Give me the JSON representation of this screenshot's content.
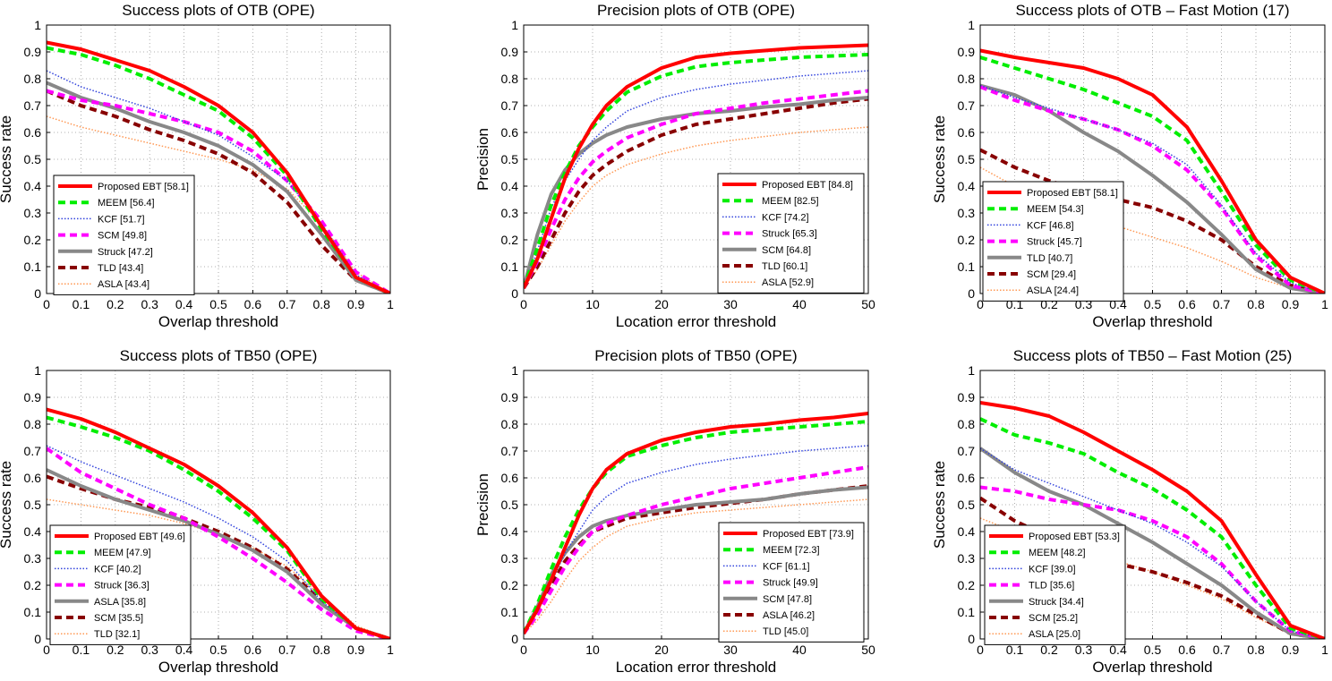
{
  "chart_data": [
    {
      "type": "line",
      "title": "Success plots of OTB (OPE)",
      "xlabel": "Overlap threshold",
      "ylabel": "Success rate",
      "xlim": [
        0,
        1
      ],
      "ylim": [
        0,
        1
      ],
      "xticks": [
        "0",
        "0.1",
        "0.2",
        "0.3",
        "0.4",
        "0.5",
        "0.6",
        "0.7",
        "0.8",
        "0.9",
        "1"
      ],
      "yticks": [
        "0",
        "0.1",
        "0.2",
        "0.3",
        "0.4",
        "0.5",
        "0.6",
        "0.7",
        "0.8",
        "0.9",
        "1"
      ],
      "grid": true,
      "legend_position": "lower-left",
      "x": [
        0,
        0.1,
        0.2,
        0.3,
        0.4,
        0.5,
        0.6,
        0.7,
        0.8,
        0.9,
        1
      ],
      "series": [
        {
          "name": "Proposed EBT [58.1]",
          "style": "ebt",
          "values": [
            0.935,
            0.91,
            0.87,
            0.83,
            0.77,
            0.7,
            0.6,
            0.45,
            0.25,
            0.06,
            0
          ]
        },
        {
          "name": "MEEM [56.4]",
          "style": "meem",
          "values": [
            0.915,
            0.89,
            0.85,
            0.8,
            0.74,
            0.68,
            0.58,
            0.44,
            0.24,
            0.06,
            0
          ]
        },
        {
          "name": "KCF [51.7]",
          "style": "kcf",
          "values": [
            0.83,
            0.77,
            0.73,
            0.69,
            0.64,
            0.59,
            0.51,
            0.42,
            0.26,
            0.07,
            0
          ]
        },
        {
          "name": "SCM [49.8]",
          "style": "scm",
          "values": [
            0.755,
            0.72,
            0.7,
            0.67,
            0.64,
            0.6,
            0.53,
            0.42,
            0.27,
            0.08,
            0
          ]
        },
        {
          "name": "Struck [47.2]",
          "style": "struck",
          "values": [
            0.785,
            0.73,
            0.69,
            0.64,
            0.6,
            0.55,
            0.48,
            0.38,
            0.22,
            0.05,
            0
          ]
        },
        {
          "name": "TLD [43.4]",
          "style": "tld",
          "values": [
            0.755,
            0.7,
            0.66,
            0.61,
            0.57,
            0.52,
            0.45,
            0.34,
            0.18,
            0.05,
            0
          ]
        },
        {
          "name": "ASLA [43.4]",
          "style": "asla",
          "values": [
            0.66,
            0.62,
            0.59,
            0.56,
            0.53,
            0.5,
            0.46,
            0.39,
            0.26,
            0.08,
            0
          ]
        }
      ]
    },
    {
      "type": "line",
      "title": "Precision plots of OTB (OPE)",
      "xlabel": "Location error threshold",
      "ylabel": "Precision",
      "xlim": [
        0,
        50
      ],
      "ylim": [
        0,
        1
      ],
      "xticks": [
        "0",
        "10",
        "20",
        "30",
        "40",
        "50"
      ],
      "yticks": [
        "0",
        "0.1",
        "0.2",
        "0.3",
        "0.4",
        "0.5",
        "0.6",
        "0.7",
        "0.8",
        "0.9",
        "1"
      ],
      "grid": true,
      "legend_position": "lower-right",
      "x": [
        0,
        2,
        4,
        6,
        8,
        10,
        12,
        15,
        20,
        25,
        30,
        35,
        40,
        45,
        50
      ],
      "series": [
        {
          "name": "Proposed EBT [84.8]",
          "style": "ebt",
          "values": [
            0.02,
            0.13,
            0.28,
            0.43,
            0.54,
            0.63,
            0.7,
            0.77,
            0.84,
            0.88,
            0.895,
            0.905,
            0.915,
            0.92,
            0.925
          ]
        },
        {
          "name": "MEEM [82.5]",
          "style": "meem",
          "values": [
            0.02,
            0.17,
            0.33,
            0.45,
            0.55,
            0.62,
            0.68,
            0.75,
            0.81,
            0.845,
            0.86,
            0.87,
            0.88,
            0.885,
            0.89
          ]
        },
        {
          "name": "KCF [74.2]",
          "style": "kcf",
          "values": [
            0.02,
            0.16,
            0.32,
            0.42,
            0.5,
            0.57,
            0.62,
            0.68,
            0.73,
            0.76,
            0.78,
            0.795,
            0.81,
            0.82,
            0.83
          ]
        },
        {
          "name": "Struck [65.3]",
          "style": "scm",
          "values": [
            0.02,
            0.12,
            0.24,
            0.35,
            0.43,
            0.49,
            0.53,
            0.58,
            0.63,
            0.67,
            0.69,
            0.71,
            0.725,
            0.74,
            0.755
          ]
        },
        {
          "name": "SCM [64.8]",
          "style": "struck",
          "values": [
            0.02,
            0.22,
            0.37,
            0.46,
            0.52,
            0.56,
            0.59,
            0.62,
            0.65,
            0.67,
            0.68,
            0.695,
            0.705,
            0.72,
            0.73
          ]
        },
        {
          "name": "TLD [60.1]",
          "style": "tld",
          "values": [
            0.02,
            0.1,
            0.2,
            0.3,
            0.38,
            0.44,
            0.48,
            0.53,
            0.59,
            0.63,
            0.65,
            0.67,
            0.69,
            0.71,
            0.725
          ]
        },
        {
          "name": "ASLA [52.9]",
          "style": "asla",
          "values": [
            0.02,
            0.09,
            0.18,
            0.27,
            0.34,
            0.4,
            0.44,
            0.48,
            0.52,
            0.55,
            0.57,
            0.585,
            0.6,
            0.61,
            0.62
          ]
        }
      ]
    },
    {
      "type": "line",
      "title": "Success plots of OTB – Fast Motion (17)",
      "xlabel": "Overlap threshold",
      "ylabel": "Success rate",
      "xlim": [
        0,
        1
      ],
      "ylim": [
        0,
        1
      ],
      "xticks": [
        "0",
        "0.1",
        "0.2",
        "0.3",
        "0.4",
        "0.5",
        "0.6",
        "0.7",
        "0.8",
        "0.9",
        "1"
      ],
      "yticks": [
        "0",
        "0.1",
        "0.2",
        "0.3",
        "0.4",
        "0.5",
        "0.6",
        "0.7",
        "0.8",
        "0.9",
        "1"
      ],
      "grid": true,
      "legend_position": "lower-left",
      "x": [
        0,
        0.1,
        0.2,
        0.3,
        0.4,
        0.5,
        0.6,
        0.7,
        0.8,
        0.9,
        1
      ],
      "series": [
        {
          "name": "Proposed EBT [58.1]",
          "style": "ebt",
          "values": [
            0.905,
            0.88,
            0.86,
            0.84,
            0.8,
            0.74,
            0.62,
            0.42,
            0.2,
            0.06,
            0
          ]
        },
        {
          "name": "MEEM [54.3]",
          "style": "meem",
          "values": [
            0.88,
            0.84,
            0.8,
            0.76,
            0.71,
            0.66,
            0.57,
            0.38,
            0.18,
            0.05,
            0
          ]
        },
        {
          "name": "KCF [46.8]",
          "style": "kcf",
          "values": [
            0.775,
            0.73,
            0.69,
            0.65,
            0.61,
            0.56,
            0.48,
            0.33,
            0.15,
            0.04,
            0
          ]
        },
        {
          "name": "Struck [45.7]",
          "style": "scm",
          "values": [
            0.77,
            0.72,
            0.68,
            0.65,
            0.61,
            0.55,
            0.46,
            0.32,
            0.14,
            0.03,
            0
          ]
        },
        {
          "name": "TLD [40.7]",
          "style": "struck",
          "values": [
            0.775,
            0.74,
            0.68,
            0.6,
            0.53,
            0.44,
            0.34,
            0.22,
            0.09,
            0.02,
            0
          ]
        },
        {
          "name": "SCM [29.4]",
          "style": "tld",
          "values": [
            0.535,
            0.47,
            0.42,
            0.38,
            0.35,
            0.32,
            0.27,
            0.2,
            0.1,
            0.03,
            0
          ]
        },
        {
          "name": "ASLA [24.4]",
          "style": "asla",
          "values": [
            0.47,
            0.4,
            0.34,
            0.29,
            0.25,
            0.21,
            0.17,
            0.12,
            0.06,
            0.02,
            0
          ]
        }
      ]
    },
    {
      "type": "line",
      "title": "Success plots of TB50 (OPE)",
      "xlabel": "Overlap threshold",
      "ylabel": "Success rate",
      "xlim": [
        0,
        1
      ],
      "ylim": [
        0,
        1
      ],
      "xticks": [
        "0",
        "0.1",
        "0.2",
        "0.3",
        "0.4",
        "0.5",
        "0.6",
        "0.7",
        "0.8",
        "0.9",
        "1"
      ],
      "yticks": [
        "0",
        "0.1",
        "0.2",
        "0.3",
        "0.4",
        "0.5",
        "0.6",
        "0.7",
        "0.8",
        "0.9",
        "1"
      ],
      "grid": true,
      "legend_position": "lower-left",
      "x": [
        0,
        0.1,
        0.2,
        0.3,
        0.4,
        0.5,
        0.6,
        0.7,
        0.8,
        0.9,
        1
      ],
      "series": [
        {
          "name": "Proposed EBT [49.6]",
          "style": "ebt",
          "values": [
            0.855,
            0.82,
            0.77,
            0.71,
            0.65,
            0.57,
            0.47,
            0.34,
            0.16,
            0.04,
            0
          ]
        },
        {
          "name": "MEEM [47.9]",
          "style": "meem",
          "values": [
            0.825,
            0.79,
            0.75,
            0.7,
            0.63,
            0.55,
            0.45,
            0.33,
            0.15,
            0.04,
            0
          ]
        },
        {
          "name": "KCF [40.2]",
          "style": "kcf",
          "values": [
            0.72,
            0.66,
            0.61,
            0.56,
            0.51,
            0.45,
            0.38,
            0.29,
            0.14,
            0.04,
            0
          ]
        },
        {
          "name": "Struck [36.3]",
          "style": "scm",
          "values": [
            0.71,
            0.62,
            0.56,
            0.5,
            0.45,
            0.38,
            0.3,
            0.21,
            0.11,
            0.03,
            0
          ]
        },
        {
          "name": "ASLA [35.8]",
          "style": "struck",
          "values": [
            0.63,
            0.57,
            0.52,
            0.48,
            0.44,
            0.39,
            0.33,
            0.25,
            0.13,
            0.04,
            0
          ]
        },
        {
          "name": "SCM [35.5]",
          "style": "tld",
          "values": [
            0.605,
            0.56,
            0.52,
            0.49,
            0.45,
            0.4,
            0.34,
            0.26,
            0.14,
            0.04,
            0
          ]
        },
        {
          "name": "TLD [32.1]",
          "style": "asla",
          "values": [
            0.52,
            0.5,
            0.48,
            0.46,
            0.43,
            0.39,
            0.34,
            0.27,
            0.16,
            0.05,
            0
          ]
        }
      ]
    },
    {
      "type": "line",
      "title": "Precision plots of TB50 (OPE)",
      "xlabel": "Location error threshold",
      "ylabel": "Precision",
      "xlim": [
        0,
        50
      ],
      "ylim": [
        0,
        1
      ],
      "xticks": [
        "0",
        "10",
        "20",
        "30",
        "40",
        "50"
      ],
      "yticks": [
        "0",
        "0.1",
        "0.2",
        "0.3",
        "0.4",
        "0.5",
        "0.6",
        "0.7",
        "0.8",
        "0.9",
        "1"
      ],
      "grid": true,
      "legend_position": "lower-right",
      "x": [
        0,
        2,
        4,
        6,
        8,
        10,
        12,
        15,
        20,
        25,
        30,
        35,
        40,
        45,
        50
      ],
      "series": [
        {
          "name": "Proposed EBT [73.9]",
          "style": "ebt",
          "values": [
            0.02,
            0.11,
            0.22,
            0.34,
            0.46,
            0.56,
            0.63,
            0.69,
            0.74,
            0.77,
            0.79,
            0.8,
            0.815,
            0.825,
            0.84
          ]
        },
        {
          "name": "MEEM [72.3]",
          "style": "meem",
          "values": [
            0.02,
            0.13,
            0.26,
            0.38,
            0.48,
            0.56,
            0.62,
            0.68,
            0.72,
            0.75,
            0.77,
            0.78,
            0.79,
            0.8,
            0.81
          ]
        },
        {
          "name": "KCF [61.1]",
          "style": "kcf",
          "values": [
            0.02,
            0.1,
            0.21,
            0.32,
            0.4,
            0.48,
            0.53,
            0.58,
            0.62,
            0.65,
            0.67,
            0.685,
            0.7,
            0.71,
            0.72
          ]
        },
        {
          "name": "Struck [49.9]",
          "style": "scm",
          "values": [
            0.02,
            0.09,
            0.18,
            0.27,
            0.34,
            0.4,
            0.43,
            0.46,
            0.5,
            0.53,
            0.56,
            0.58,
            0.6,
            0.62,
            0.64
          ]
        },
        {
          "name": "SCM [47.8]",
          "style": "struck",
          "values": [
            0.02,
            0.12,
            0.24,
            0.32,
            0.38,
            0.42,
            0.44,
            0.46,
            0.48,
            0.5,
            0.51,
            0.52,
            0.54,
            0.555,
            0.565
          ]
        },
        {
          "name": "ASLA [46.2]",
          "style": "tld",
          "values": [
            0.02,
            0.1,
            0.2,
            0.29,
            0.35,
            0.4,
            0.42,
            0.45,
            0.47,
            0.49,
            0.505,
            0.52,
            0.54,
            0.555,
            0.57
          ]
        },
        {
          "name": "TLD [45.0]",
          "style": "asla",
          "values": [
            0.02,
            0.07,
            0.14,
            0.22,
            0.29,
            0.34,
            0.38,
            0.42,
            0.45,
            0.47,
            0.48,
            0.49,
            0.5,
            0.51,
            0.52
          ]
        }
      ]
    },
    {
      "type": "line",
      "title": "Success plots of TB50 – Fast Motion (25)",
      "xlabel": "Overlap threshold",
      "ylabel": "Success rate",
      "xlim": [
        0,
        1
      ],
      "ylim": [
        0,
        1
      ],
      "xticks": [
        "0",
        "0.1",
        "0.2",
        "0.3",
        "0.4",
        "0.5",
        "0.6",
        "0.7",
        "0.8",
        "0.9",
        "1"
      ],
      "yticks": [
        "0",
        "0.1",
        "0.2",
        "0.3",
        "0.4",
        "0.5",
        "0.6",
        "0.7",
        "0.8",
        "0.9",
        "1"
      ],
      "grid": true,
      "legend_position": "lower-left",
      "x": [
        0,
        0.1,
        0.2,
        0.3,
        0.4,
        0.5,
        0.6,
        0.7,
        0.8,
        0.9,
        1
      ],
      "series": [
        {
          "name": "Proposed EBT [53.3]",
          "style": "ebt",
          "values": [
            0.88,
            0.86,
            0.83,
            0.77,
            0.7,
            0.63,
            0.55,
            0.44,
            0.24,
            0.05,
            0
          ]
        },
        {
          "name": "MEEM [48.2]",
          "style": "meem",
          "values": [
            0.82,
            0.76,
            0.73,
            0.69,
            0.62,
            0.56,
            0.48,
            0.38,
            0.2,
            0.04,
            0
          ]
        },
        {
          "name": "KCF [39.0]",
          "style": "kcf",
          "values": [
            0.71,
            0.63,
            0.58,
            0.53,
            0.48,
            0.43,
            0.36,
            0.27,
            0.14,
            0.03,
            0
          ]
        },
        {
          "name": "TLD [35.6]",
          "style": "scm",
          "values": [
            0.565,
            0.55,
            0.52,
            0.5,
            0.48,
            0.44,
            0.38,
            0.28,
            0.14,
            0.03,
            0
          ]
        },
        {
          "name": "Struck [34.4]",
          "style": "struck",
          "values": [
            0.71,
            0.62,
            0.55,
            0.5,
            0.43,
            0.36,
            0.28,
            0.2,
            0.1,
            0.02,
            0
          ]
        },
        {
          "name": "SCM [25.2]",
          "style": "tld",
          "values": [
            0.525,
            0.44,
            0.38,
            0.32,
            0.28,
            0.25,
            0.21,
            0.16,
            0.09,
            0.02,
            0
          ]
        },
        {
          "name": "ASLA [25.0]",
          "style": "asla",
          "values": [
            0.45,
            0.4,
            0.36,
            0.33,
            0.29,
            0.25,
            0.2,
            0.15,
            0.08,
            0.02,
            0
          ]
        }
      ]
    }
  ],
  "styles": {
    "ebt": {
      "color": "#ff0000",
      "dash": "none",
      "width": 4
    },
    "meem": {
      "color": "#00ee00",
      "dash": "8,5",
      "width": 4
    },
    "kcf": {
      "color": "#3344dd",
      "dash": "1.5,2",
      "width": 1.5
    },
    "scm": {
      "color": "#ff00ff",
      "dash": "8,5",
      "width": 4
    },
    "struck": {
      "color": "#888888",
      "dash": "none",
      "width": 4
    },
    "tld": {
      "color": "#880000",
      "dash": "8,5",
      "width": 4
    },
    "asla": {
      "color": "#ff9955",
      "dash": "1.5,2",
      "width": 1.5
    }
  }
}
